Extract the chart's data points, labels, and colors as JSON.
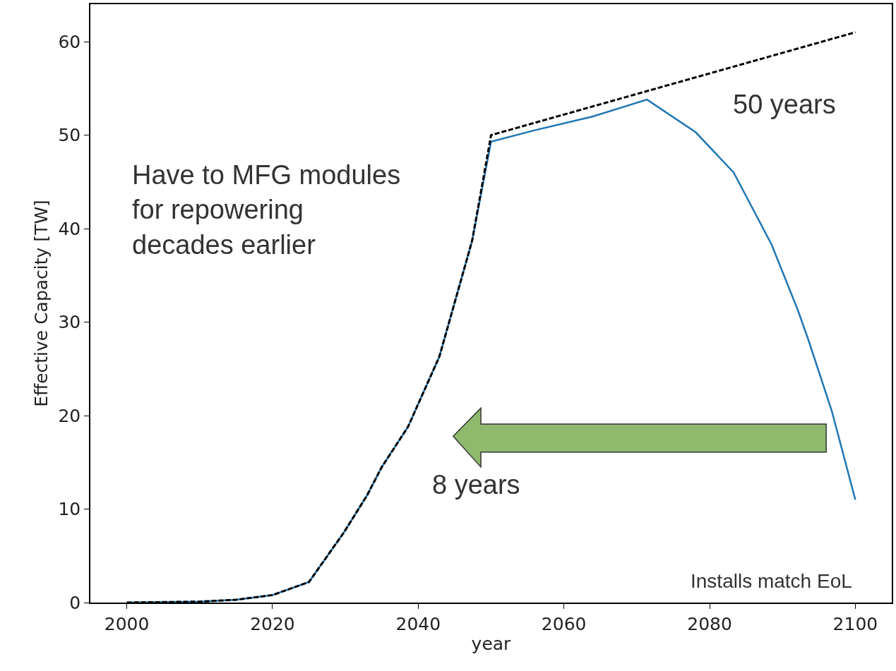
{
  "chart_data": {
    "type": "line",
    "xlabel": "year",
    "ylabel": "Effective Capacity [TW]",
    "xlim": [
      1995,
      2105
    ],
    "xticks": [
      2000,
      2020,
      2040,
      2060,
      2080,
      2100
    ],
    "ylim": [
      0,
      64
    ],
    "yticks": [
      0,
      10,
      20,
      30,
      40,
      50,
      60
    ],
    "series": [
      {
        "color": "#1f77b4",
        "line_style": "solid",
        "x": [
          2000,
          2010,
          2015,
          2020,
          2025,
          2029.8,
          2033,
          2035,
          2038.6,
          2042.9,
          2047.4,
          2050,
          2055.9,
          2064,
          2071.4,
          2078.1,
          2083.3,
          2088.5,
          2092.1,
          2093.6,
          2096.8,
          2100
        ],
        "values": [
          0,
          0.1,
          0.3,
          0.8,
          2.2,
          7.5,
          11.5,
          14.5,
          18.8,
          26.3,
          38.7,
          49.3,
          50.5,
          52.0,
          53.8,
          50.3,
          46.0,
          38.3,
          31.3,
          28.0,
          20.4,
          11.0
        ]
      },
      {
        "color": "#000000",
        "line_style": "dashed",
        "x": [
          2000,
          2010,
          2015,
          2020,
          2025,
          2029.8,
          2033,
          2035,
          2038.6,
          2042.9,
          2047.4,
          2050,
          2100
        ],
        "values": [
          0,
          0.1,
          0.3,
          0.8,
          2.2,
          7.5,
          11.5,
          14.5,
          18.8,
          26.3,
          38.7,
          50.0,
          61.0
        ]
      }
    ],
    "annotations": [
      "Have to MFG modules\nfor repowering\ndecades earlier",
      "50 years",
      "8 years",
      "Installs match EoL"
    ]
  }
}
